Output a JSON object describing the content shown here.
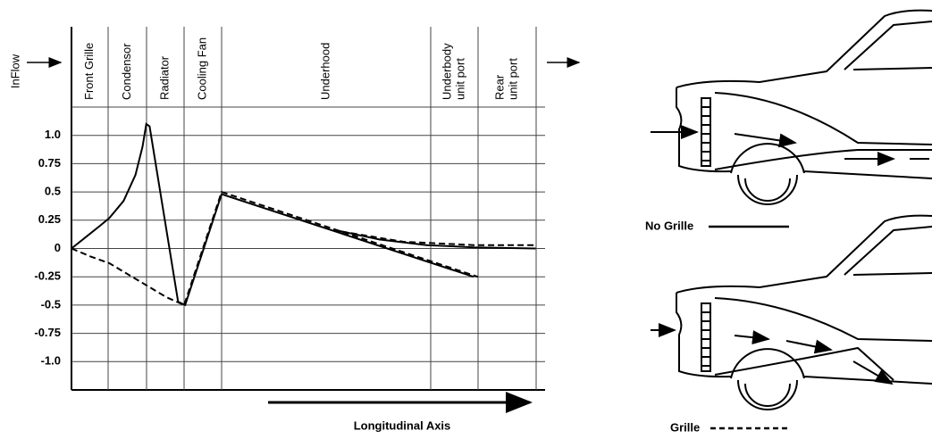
{
  "chart_data": {
    "type": "line",
    "inflow_label": "InFlow",
    "x_axis_label": "Longitudinal Axis",
    "zones": [
      [
        "Front Grille"
      ],
      [
        "Condensor"
      ],
      [
        "Radiator"
      ],
      [
        "Cooling Fan"
      ],
      [
        "Underhood"
      ],
      [
        "Underbody",
        "unit port"
      ],
      [
        "Rear",
        "unit port"
      ]
    ],
    "xlim": [
      0,
      100
    ],
    "ylim": [
      -1.25,
      1.25
    ],
    "yticks": [
      {
        "value": 1,
        "label": "1.0"
      },
      0.75,
      0.5,
      0.25,
      0,
      -0.25,
      -0.5,
      -0.75,
      {
        "value": -1,
        "label": "-1.0"
      }
    ],
    "grid": true,
    "series": [
      {
        "name": "No Grille",
        "color": "#000000",
        "line_style": "solid",
        "x": [
          0,
          3,
          6,
          8,
          11,
          13.5,
          15,
          15.8,
          16.5,
          22.5,
          24,
          31.7,
          84.9,
          null,
          56,
          65,
          75,
          85,
          98
        ],
        "values": [
          0,
          0.1,
          0.2,
          0.27,
          0.42,
          0.65,
          0.9,
          1.1,
          1.08,
          -0.47,
          -0.5,
          0.48,
          -0.25,
          null,
          0.16,
          0.08,
          0.03,
          0.01,
          0
        ]
      },
      {
        "name": "Grille",
        "color": "#000000",
        "line_style": "dashed",
        "x": [
          0,
          4,
          8,
          12,
          16,
          20,
          23.8,
          31.7,
          85.8,
          null,
          57,
          70,
          85,
          98
        ],
        "values": [
          0,
          -0.07,
          -0.13,
          -0.23,
          -0.33,
          -0.43,
          -0.5,
          0.5,
          -0.25,
          null,
          0.15,
          0.06,
          0.03,
          0.03
        ]
      }
    ]
  }
}
